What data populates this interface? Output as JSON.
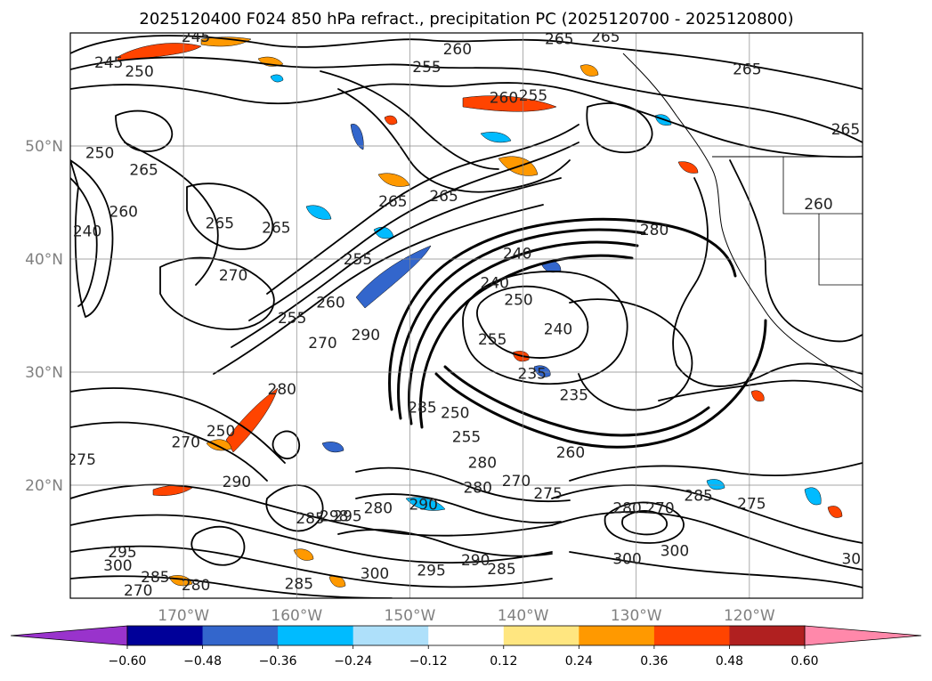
{
  "chart_data": {
    "type": "contour-map",
    "title": "2025120400 F024 850 hPa refract., precipitation PC (2025120700 - 2025120800)",
    "lon_range": [
      -180,
      -110
    ],
    "lat_range": [
      10,
      60
    ],
    "lon_ticks": [
      {
        "value": -170,
        "label": "170°W"
      },
      {
        "value": -160,
        "label": "160°W"
      },
      {
        "value": -150,
        "label": "150°W"
      },
      {
        "value": -140,
        "label": "140°W"
      },
      {
        "value": -130,
        "label": "130°W"
      },
      {
        "value": -120,
        "label": "120°W"
      }
    ],
    "lat_ticks": [
      {
        "value": 20,
        "label": "20°N"
      },
      {
        "value": 30,
        "label": "30°N"
      },
      {
        "value": 40,
        "label": "40°N"
      },
      {
        "value": 50,
        "label": "50°N"
      }
    ],
    "grid": true,
    "colorbar": {
      "orientation": "horizontal",
      "extend": "both",
      "levels": [
        -0.6,
        -0.48,
        -0.36,
        -0.24,
        -0.12,
        0.12,
        0.24,
        0.36,
        0.48,
        0.6
      ],
      "tick_labels": [
        "−0.60",
        "−0.48",
        "−0.36",
        "−0.24",
        "−0.12",
        "0.12",
        "0.24",
        "0.36",
        "0.48",
        "0.60"
      ],
      "colors": [
        "#9933cc",
        "#000099",
        "#3366cc",
        "#00bbff",
        "#aee0fa",
        "#ffffff",
        "#ffe680",
        "#ff9900",
        "#ff4400",
        "#b02020",
        "#ff88aa"
      ]
    },
    "contour_labels": [
      {
        "text": "245",
        "lon": -176.6,
        "lat": 57.4
      },
      {
        "text": "245",
        "lon": -168.9,
        "lat": 59.7
      },
      {
        "text": "250",
        "lon": -173.9,
        "lat": 56.6
      },
      {
        "text": "260",
        "lon": -145.8,
        "lat": 58.6
      },
      {
        "text": "255",
        "lon": -148.5,
        "lat": 57.0
      },
      {
        "text": "265",
        "lon": -136.8,
        "lat": 59.5
      },
      {
        "text": "265",
        "lon": -132.7,
        "lat": 59.7
      },
      {
        "text": "265",
        "lon": -120.2,
        "lat": 56.8
      },
      {
        "text": "265",
        "lon": -111.5,
        "lat": 51.5
      },
      {
        "text": "260",
        "lon": -141.7,
        "lat": 54.3
      },
      {
        "text": "255",
        "lon": -139.1,
        "lat": 54.5
      },
      {
        "text": "250",
        "lon": -177.4,
        "lat": 49.4
      },
      {
        "text": "265",
        "lon": -173.5,
        "lat": 47.9
      },
      {
        "text": "260",
        "lon": -175.3,
        "lat": 44.2
      },
      {
        "text": "240",
        "lon": -178.5,
        "lat": 42.5
      },
      {
        "text": "265",
        "lon": -166.8,
        "lat": 43.2
      },
      {
        "text": "265",
        "lon": -161.8,
        "lat": 42.8
      },
      {
        "text": "270",
        "lon": -165.6,
        "lat": 38.6
      },
      {
        "text": "255",
        "lon": -154.6,
        "lat": 40.0
      },
      {
        "text": "255",
        "lon": -160.4,
        "lat": 34.8
      },
      {
        "text": "260",
        "lon": -157.0,
        "lat": 36.2
      },
      {
        "text": "270",
        "lon": -157.7,
        "lat": 32.6
      },
      {
        "text": "290",
        "lon": -153.9,
        "lat": 33.3
      },
      {
        "text": "265",
        "lon": -151.5,
        "lat": 45.1
      },
      {
        "text": "265",
        "lon": -147.0,
        "lat": 45.6
      },
      {
        "text": "240",
        "lon": -140.5,
        "lat": 40.5
      },
      {
        "text": "240",
        "lon": -142.5,
        "lat": 37.9
      },
      {
        "text": "250",
        "lon": -140.4,
        "lat": 36.4
      },
      {
        "text": "255",
        "lon": -142.7,
        "lat": 32.9
      },
      {
        "text": "240",
        "lon": -136.9,
        "lat": 33.8
      },
      {
        "text": "235",
        "lon": -139.2,
        "lat": 29.9
      },
      {
        "text": "235",
        "lon": -135.5,
        "lat": 28.0
      },
      {
        "text": "280",
        "lon": -128.4,
        "lat": 42.6
      },
      {
        "text": "260",
        "lon": -113.9,
        "lat": 44.9
      },
      {
        "text": "285",
        "lon": -148.9,
        "lat": 26.9
      },
      {
        "text": "250",
        "lon": -146.0,
        "lat": 26.4
      },
      {
        "text": "255",
        "lon": -145.0,
        "lat": 24.3
      },
      {
        "text": "280",
        "lon": -143.6,
        "lat": 22.0
      },
      {
        "text": "260",
        "lon": -135.8,
        "lat": 22.9
      },
      {
        "text": "280",
        "lon": -144.0,
        "lat": 19.8
      },
      {
        "text": "270",
        "lon": -140.6,
        "lat": 20.4
      },
      {
        "text": "275",
        "lon": -137.8,
        "lat": 19.3
      },
      {
        "text": "280",
        "lon": -152.8,
        "lat": 18.0
      },
      {
        "text": "290",
        "lon": -148.8,
        "lat": 18.3
      },
      {
        "text": "280",
        "lon": -130.8,
        "lat": 18.0
      },
      {
        "text": "270",
        "lon": -127.9,
        "lat": 18.0
      },
      {
        "text": "285",
        "lon": -124.5,
        "lat": 19.1
      },
      {
        "text": "275",
        "lon": -119.8,
        "lat": 18.4
      },
      {
        "text": "270",
        "lon": -169.8,
        "lat": 23.8
      },
      {
        "text": "250",
        "lon": -166.7,
        "lat": 24.8
      },
      {
        "text": "280",
        "lon": -161.3,
        "lat": 28.5
      },
      {
        "text": "290",
        "lon": -165.3,
        "lat": 20.3
      },
      {
        "text": "275",
        "lon": -179.0,
        "lat": 22.3
      },
      {
        "text": "285",
        "lon": -158.8,
        "lat": 17.1
      },
      {
        "text": "295",
        "lon": -155.5,
        "lat": 17.3
      },
      {
        "text": "298",
        "lon": -156.7,
        "lat": 17.3
      },
      {
        "text": "295",
        "lon": -175.4,
        "lat": 14.1
      },
      {
        "text": "300",
        "lon": -175.8,
        "lat": 12.9
      },
      {
        "text": "270",
        "lon": -174.0,
        "lat": 10.7
      },
      {
        "text": "285",
        "lon": -159.8,
        "lat": 11.3
      },
      {
        "text": "300",
        "lon": -153.1,
        "lat": 12.2
      },
      {
        "text": "295",
        "lon": -148.1,
        "lat": 12.5
      },
      {
        "text": "290",
        "lon": -144.2,
        "lat": 13.4
      },
      {
        "text": "285",
        "lon": -141.9,
        "lat": 12.6
      },
      {
        "text": "285",
        "lon": -172.5,
        "lat": 11.9
      },
      {
        "text": "280",
        "lon": -168.9,
        "lat": 11.2
      },
      {
        "text": "300",
        "lon": -130.8,
        "lat": 13.5
      },
      {
        "text": "300",
        "lon": -126.6,
        "lat": 14.2
      },
      {
        "text": "30",
        "lon": -111.0,
        "lat": 13.5
      }
    ]
  }
}
